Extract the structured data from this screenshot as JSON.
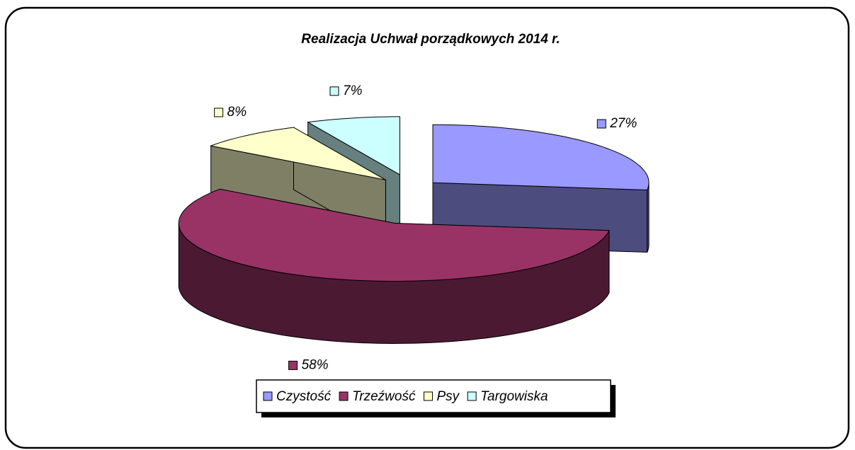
{
  "chart_data": {
    "type": "pie3d",
    "title": "Realizacja Uchwał porządkowych 2014 r.",
    "categories": [
      "Czystość",
      "Trzeźwość",
      "Psy",
      "Targowiska"
    ],
    "values": [
      27,
      58,
      8,
      7
    ],
    "value_labels": [
      "27%",
      "58%",
      "8%",
      "7%"
    ],
    "colors": [
      "#9999ff",
      "#993366",
      "#ffffcc",
      "#ccffff"
    ],
    "legend": "bottom"
  }
}
